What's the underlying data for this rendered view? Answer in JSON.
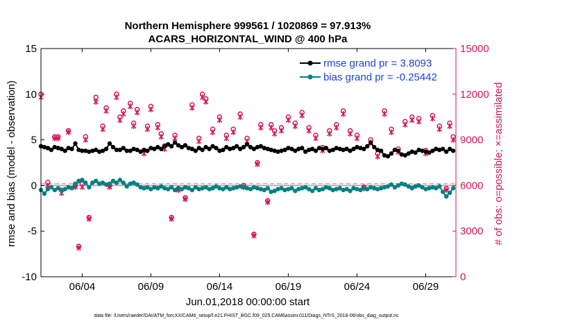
{
  "chart_data": {
    "type": "line",
    "title": "Northern Hemisphere 999561 / 1020869 = 97.913%",
    "subtitle": "ACARS_HORIZONTAL_WIND @ 400 hPa",
    "xlabel": "Jun.01,2018 00:00:00 start",
    "ylabel_left": "rmse and bias (model - observation)",
    "ylabel_right": "# of obs: o=possible; ×=assimilated",
    "footer": "data file: /Users/raeder/DAI/ATM_forcXX/CAM6_setup/f.e21.FHIST_BGC.f09_025.CAM6assim.011/Diags_NTrS_2018-06/obs_diag_output.nc",
    "x_ticks": [
      "06/04",
      "06/09",
      "06/14",
      "06/19",
      "06/24",
      "06/29"
    ],
    "x_tick_days": [
      4,
      9,
      14,
      19,
      24,
      29
    ],
    "xlim": [
      1.0,
      31.2
    ],
    "ylim_left": [
      -10,
      15
    ],
    "y_ticks_left": [
      "-10",
      "-5",
      "0",
      "5",
      "10",
      "15"
    ],
    "ylim_right": [
      0,
      15000
    ],
    "y_ticks_right": [
      "0",
      "3000",
      "6000",
      "9000",
      "12000",
      "15000"
    ],
    "colors": {
      "rmse": "#000000",
      "bias": "#008080",
      "obs": "#d4145a",
      "legend_rmse_text": "#1f3fe6",
      "legend_bias_text": "#1f3fe6",
      "zero_line": "#b0b0b0"
    },
    "legend": {
      "placement": "top-right",
      "entries": [
        "rmse grand pr = 3.8093",
        "bias grand pr = -0.25442"
      ]
    },
    "series": [
      {
        "name": "rmse grand pr = 3.8093",
        "axis": "left",
        "x": [
          1.0,
          1.25,
          1.5,
          1.75,
          2.0,
          2.25,
          2.5,
          2.75,
          3.0,
          3.25,
          3.5,
          3.75,
          4.0,
          4.25,
          4.5,
          4.75,
          5.0,
          5.25,
          5.5,
          5.75,
          6.0,
          6.25,
          6.5,
          6.75,
          7.0,
          7.25,
          7.5,
          7.75,
          8.0,
          8.25,
          8.5,
          8.75,
          9.0,
          9.25,
          9.5,
          9.75,
          10.0,
          10.25,
          10.5,
          10.75,
          11.0,
          11.25,
          11.5,
          11.75,
          12.0,
          12.25,
          12.5,
          12.75,
          13.0,
          13.25,
          13.5,
          13.75,
          14.0,
          14.25,
          14.5,
          14.75,
          15.0,
          15.25,
          15.5,
          15.75,
          16.0,
          16.25,
          16.5,
          16.75,
          17.0,
          17.25,
          17.5,
          17.75,
          18.0,
          18.25,
          18.5,
          18.75,
          19.0,
          19.25,
          19.5,
          19.75,
          20.0,
          20.25,
          20.5,
          20.75,
          21.0,
          21.25,
          21.5,
          21.75,
          22.0,
          22.25,
          22.5,
          22.75,
          23.0,
          23.25,
          23.5,
          23.75,
          24.0,
          24.25,
          24.5,
          24.75,
          25.0,
          25.25,
          25.5,
          25.75,
          26.0,
          26.25,
          26.5,
          26.75,
          27.0,
          27.25,
          27.5,
          27.75,
          28.0,
          28.25,
          28.5,
          28.75,
          29.0,
          29.25,
          29.5,
          29.75,
          30.0,
          30.25,
          30.5,
          30.75,
          31.0
        ],
        "values": [
          4.3,
          4.2,
          4.1,
          3.9,
          4.2,
          4.1,
          4.0,
          3.8,
          4.1,
          4.0,
          4.6,
          3.9,
          3.8,
          3.8,
          3.7,
          3.8,
          3.9,
          3.7,
          3.8,
          4.0,
          4.6,
          4.2,
          3.9,
          3.9,
          4.1,
          3.8,
          3.8,
          4.0,
          3.9,
          3.7,
          3.9,
          3.8,
          4.1,
          4.0,
          4.2,
          4.0,
          4.3,
          4.5,
          4.3,
          4.7,
          4.4,
          4.2,
          4.4,
          4.1,
          4.0,
          3.8,
          4.1,
          3.9,
          4.2,
          4.0,
          4.3,
          4.1,
          3.8,
          3.9,
          4.2,
          4.0,
          4.1,
          4.3,
          4.0,
          4.2,
          4.5,
          4.2,
          4.0,
          4.2,
          4.3,
          4.1,
          4.0,
          3.9,
          3.8,
          3.7,
          3.8,
          3.9,
          4.1,
          4.0,
          3.8,
          4.0,
          4.1,
          3.7,
          3.9,
          4.0,
          3.8,
          4.1,
          4.0,
          4.1,
          3.8,
          3.9,
          4.1,
          4.0,
          3.9,
          4.0,
          3.8,
          4.0,
          4.2,
          4.1,
          4.0,
          4.3,
          4.7,
          4.2,
          3.9,
          3.8,
          3.3,
          3.2,
          3.5,
          3.9,
          3.8,
          3.4,
          3.3,
          3.5,
          3.7,
          3.6,
          3.9,
          3.8,
          3.7,
          3.6,
          3.8,
          4.0,
          3.9,
          4.0,
          3.7,
          4.0,
          3.8
        ]
      },
      {
        "name": "bias grand pr = -0.25442",
        "axis": "left",
        "x": [
          1.0,
          1.25,
          1.5,
          1.75,
          2.0,
          2.25,
          2.5,
          2.75,
          3.0,
          3.25,
          3.5,
          3.75,
          4.0,
          4.25,
          4.5,
          4.75,
          5.0,
          5.25,
          5.5,
          5.75,
          6.0,
          6.25,
          6.5,
          6.75,
          7.0,
          7.25,
          7.5,
          7.75,
          8.0,
          8.25,
          8.5,
          8.75,
          9.0,
          9.25,
          9.5,
          9.75,
          10.0,
          10.25,
          10.5,
          10.75,
          11.0,
          11.25,
          11.5,
          11.75,
          12.0,
          12.25,
          12.5,
          12.75,
          13.0,
          13.25,
          13.5,
          13.75,
          14.0,
          14.25,
          14.5,
          14.75,
          15.0,
          15.25,
          15.5,
          15.75,
          16.0,
          16.25,
          16.5,
          16.75,
          17.0,
          17.25,
          17.5,
          17.75,
          18.0,
          18.25,
          18.5,
          18.75,
          19.0,
          19.25,
          19.5,
          19.75,
          20.0,
          20.25,
          20.5,
          20.75,
          21.0,
          21.25,
          21.5,
          21.75,
          22.0,
          22.25,
          22.5,
          22.75,
          23.0,
          23.25,
          23.5,
          23.75,
          24.0,
          24.25,
          24.5,
          24.75,
          25.0,
          25.25,
          25.5,
          25.75,
          26.0,
          26.25,
          26.5,
          26.75,
          27.0,
          27.25,
          27.5,
          27.75,
          28.0,
          28.25,
          28.5,
          28.75,
          29.0,
          29.25,
          29.5,
          29.75,
          30.0,
          30.25,
          30.5,
          30.75,
          31.0
        ],
        "values": [
          -0.5,
          -0.9,
          -0.4,
          -0.2,
          -0.5,
          -0.3,
          -0.6,
          -0.4,
          -0.2,
          -0.3,
          0.2,
          0.5,
          0.6,
          0.3,
          -0.2,
          0.3,
          0.5,
          0.2,
          0.3,
          0.1,
          0.2,
          0.5,
          0.3,
          0.6,
          0.3,
          -0.1,
          0.2,
          0.3,
          0.1,
          -0.2,
          -0.3,
          -0.2,
          -0.4,
          -0.2,
          -0.3,
          -0.1,
          -0.3,
          -0.4,
          -0.2,
          -0.5,
          -0.3,
          -0.4,
          -0.2,
          -0.3,
          -0.5,
          -0.2,
          -0.4,
          -0.3,
          -0.2,
          -0.4,
          -0.3,
          -0.1,
          -0.3,
          -0.4,
          -0.2,
          -0.4,
          -0.3,
          -0.2,
          -0.1,
          -0.2,
          -0.3,
          -0.4,
          -0.2,
          -0.3,
          -0.4,
          -0.5,
          -0.3,
          -0.7,
          -0.6,
          -0.4,
          -0.3,
          -0.5,
          -0.4,
          -0.3,
          -0.6,
          -0.4,
          -0.3,
          -0.2,
          -0.4,
          -0.6,
          -0.3,
          -0.5,
          -0.4,
          -0.2,
          -0.3,
          -0.5,
          -0.4,
          -0.3,
          -0.5,
          -0.4,
          -0.6,
          -0.3,
          -0.4,
          -0.5,
          -0.3,
          -0.4,
          -0.2,
          -0.3,
          -0.4,
          -0.3,
          -0.2,
          -0.1,
          0.1,
          -0.2,
          0.0,
          0.2,
          0.1,
          -0.1,
          -0.3,
          -0.1,
          0.0,
          -0.2,
          -0.4,
          -0.3,
          -0.2,
          -0.3,
          -0.1,
          -0.7,
          -1.2,
          -0.8,
          -0.3
        ]
      },
      {
        "name": "possible",
        "axis": "right",
        "marker": "o",
        "x": [
          1.0,
          1.5,
          2.0,
          2.25,
          2.5,
          3.0,
          3.5,
          3.75,
          4.0,
          4.25,
          4.5,
          5.0,
          5.5,
          5.75,
          6.0,
          6.5,
          6.75,
          7.0,
          7.5,
          7.75,
          8.0,
          8.5,
          8.75,
          9.0,
          9.5,
          9.75,
          10.0,
          10.5,
          10.75,
          11.0,
          11.5,
          12.0,
          12.5,
          12.75,
          13.0,
          13.5,
          14.0,
          14.5,
          15.0,
          15.5,
          15.75,
          16.0,
          16.5,
          16.75,
          17.0,
          17.5,
          17.75,
          18.0,
          18.5,
          19.0,
          19.5,
          20.0,
          20.5,
          21.0,
          21.5,
          22.0,
          22.5,
          23.0,
          23.5,
          24.0,
          24.5,
          25.0,
          25.5,
          26.0,
          26.5,
          27.0,
          27.5,
          28.0,
          28.5,
          29.0,
          29.5,
          30.0,
          30.5,
          30.75,
          31.0
        ],
        "values": [
          12000,
          6200,
          9200,
          9200,
          5700,
          9600,
          6000,
          2000,
          6100,
          9200,
          3900,
          11800,
          9900,
          11100,
          6000,
          12000,
          10500,
          10900,
          11400,
          10100,
          11000,
          8300,
          9900,
          11200,
          10000,
          9400,
          8600,
          3900,
          9300,
          5800,
          5200,
          11300,
          9100,
          12000,
          11700,
          9700,
          10500,
          9300,
          9700,
          10700,
          6000,
          9100,
          2800,
          7500,
          10000,
          5000,
          10000,
          9600,
          9800,
          10500,
          10100,
          10800,
          9800,
          9300,
          8500,
          9600,
          10000,
          10900,
          9600,
          9300,
          5900,
          9000,
          8100,
          10900,
          9700,
          8400,
          10200,
          10500,
          10400,
          8300,
          10600,
          9900,
          5800,
          10100,
          9200
        ]
      },
      {
        "name": "assimilated",
        "axis": "right",
        "marker": "x",
        "x": [
          1.0,
          1.5,
          2.0,
          2.25,
          2.5,
          3.0,
          3.5,
          3.75,
          4.0,
          4.25,
          4.5,
          5.0,
          5.5,
          5.75,
          6.0,
          6.5,
          6.75,
          7.0,
          7.5,
          7.75,
          8.0,
          8.5,
          8.75,
          9.0,
          9.5,
          9.75,
          10.0,
          10.5,
          10.75,
          11.0,
          11.5,
          12.0,
          12.5,
          12.75,
          13.0,
          13.5,
          14.0,
          14.5,
          15.0,
          15.5,
          15.75,
          16.0,
          16.5,
          16.75,
          17.0,
          17.5,
          17.75,
          18.0,
          18.5,
          19.0,
          19.5,
          20.0,
          20.5,
          21.0,
          21.5,
          22.0,
          22.5,
          23.0,
          23.5,
          24.0,
          24.5,
          25.0,
          25.5,
          26.0,
          26.5,
          27.0,
          27.5,
          28.0,
          28.5,
          29.0,
          29.5,
          30.0,
          30.5,
          30.75,
          31.0
        ],
        "values": [
          11800,
          6000,
          9100,
          9100,
          5500,
          9500,
          5900,
          1900,
          5900,
          9000,
          3800,
          11500,
          9700,
          10900,
          5900,
          11800,
          10300,
          10700,
          11200,
          9900,
          10800,
          8100,
          9700,
          11000,
          9800,
          9200,
          8400,
          3800,
          9100,
          5700,
          5100,
          11100,
          8900,
          11800,
          11500,
          9500,
          10300,
          9100,
          9500,
          10500,
          5900,
          8900,
          2700,
          7400,
          9800,
          4900,
          9800,
          9400,
          9600,
          10300,
          9900,
          10600,
          9600,
          9100,
          8300,
          9400,
          9800,
          10700,
          9400,
          9100,
          5800,
          8800,
          7900,
          10700,
          9500,
          8200,
          10000,
          10300,
          10200,
          8100,
          10400,
          9700,
          5700,
          9900,
          9000
        ]
      }
    ]
  }
}
